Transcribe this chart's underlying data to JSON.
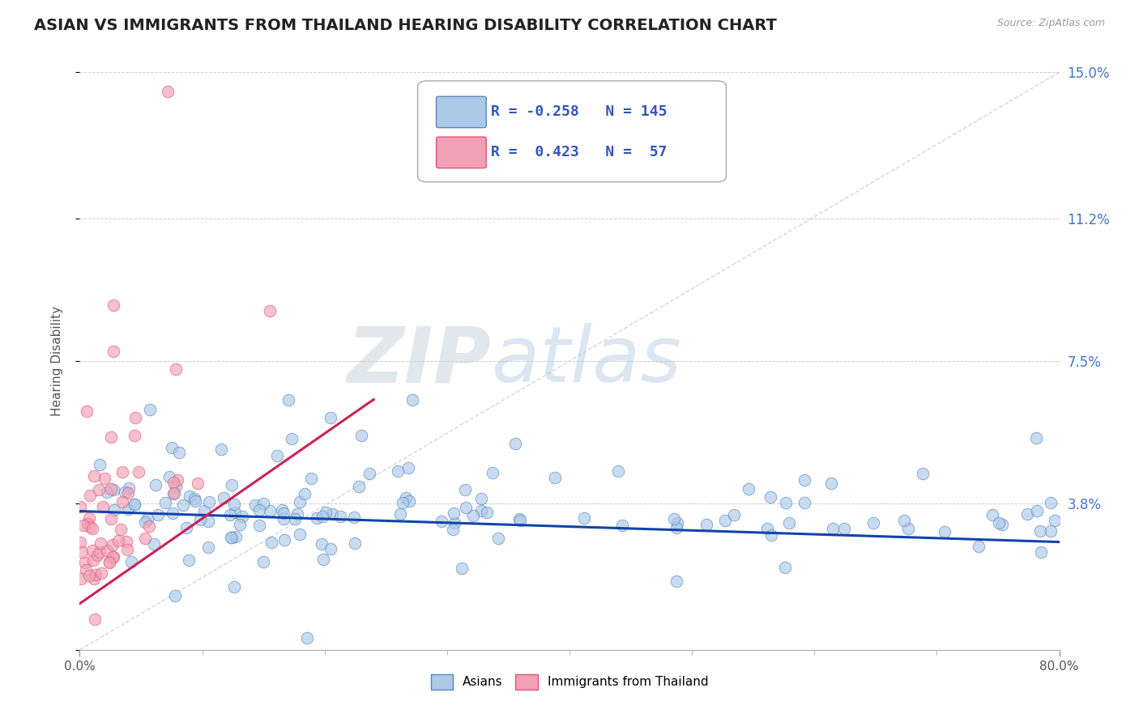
{
  "title": "ASIAN VS IMMIGRANTS FROM THAILAND HEARING DISABILITY CORRELATION CHART",
  "source": "Source: ZipAtlas.com",
  "ylabel": "Hearing Disability",
  "xlabel": "",
  "xlim": [
    0.0,
    0.8
  ],
  "ylim": [
    0.0,
    0.15
  ],
  "yticks": [
    0.0,
    0.038,
    0.075,
    0.112,
    0.15
  ],
  "ytick_labels": [
    "",
    "3.8%",
    "7.5%",
    "11.2%",
    "15.0%"
  ],
  "xtick_labels_show": [
    "0.0%",
    "80.0%"
  ],
  "xtick_positions_show": [
    0.0,
    0.8
  ],
  "xtick_minor": [
    0.1,
    0.2,
    0.3,
    0.4,
    0.5,
    0.6,
    0.7
  ],
  "asian_color": "#adc9e8",
  "thailand_color": "#f2a0b5",
  "asian_edge": "#5588bb",
  "thailand_edge": "#dd5577",
  "asian_line_color": "#1144aa",
  "thailand_line_color": "#cc2255",
  "diag_line_color": "#cccccc",
  "legend_R_asian": "-0.258",
  "legend_N_asian": "145",
  "legend_R_thailand": "0.423",
  "legend_N_thailand": "57",
  "title_fontsize": 14,
  "axis_label_fontsize": 11,
  "tick_fontsize": 11,
  "legend_fontsize": 13,
  "watermark_zip": "ZIP",
  "watermark_atlas": "atlas",
  "background_color": "#ffffff",
  "asian_R": -0.258,
  "thailand_R": 0.423,
  "asian_seed": 42,
  "thailand_seed": 77
}
